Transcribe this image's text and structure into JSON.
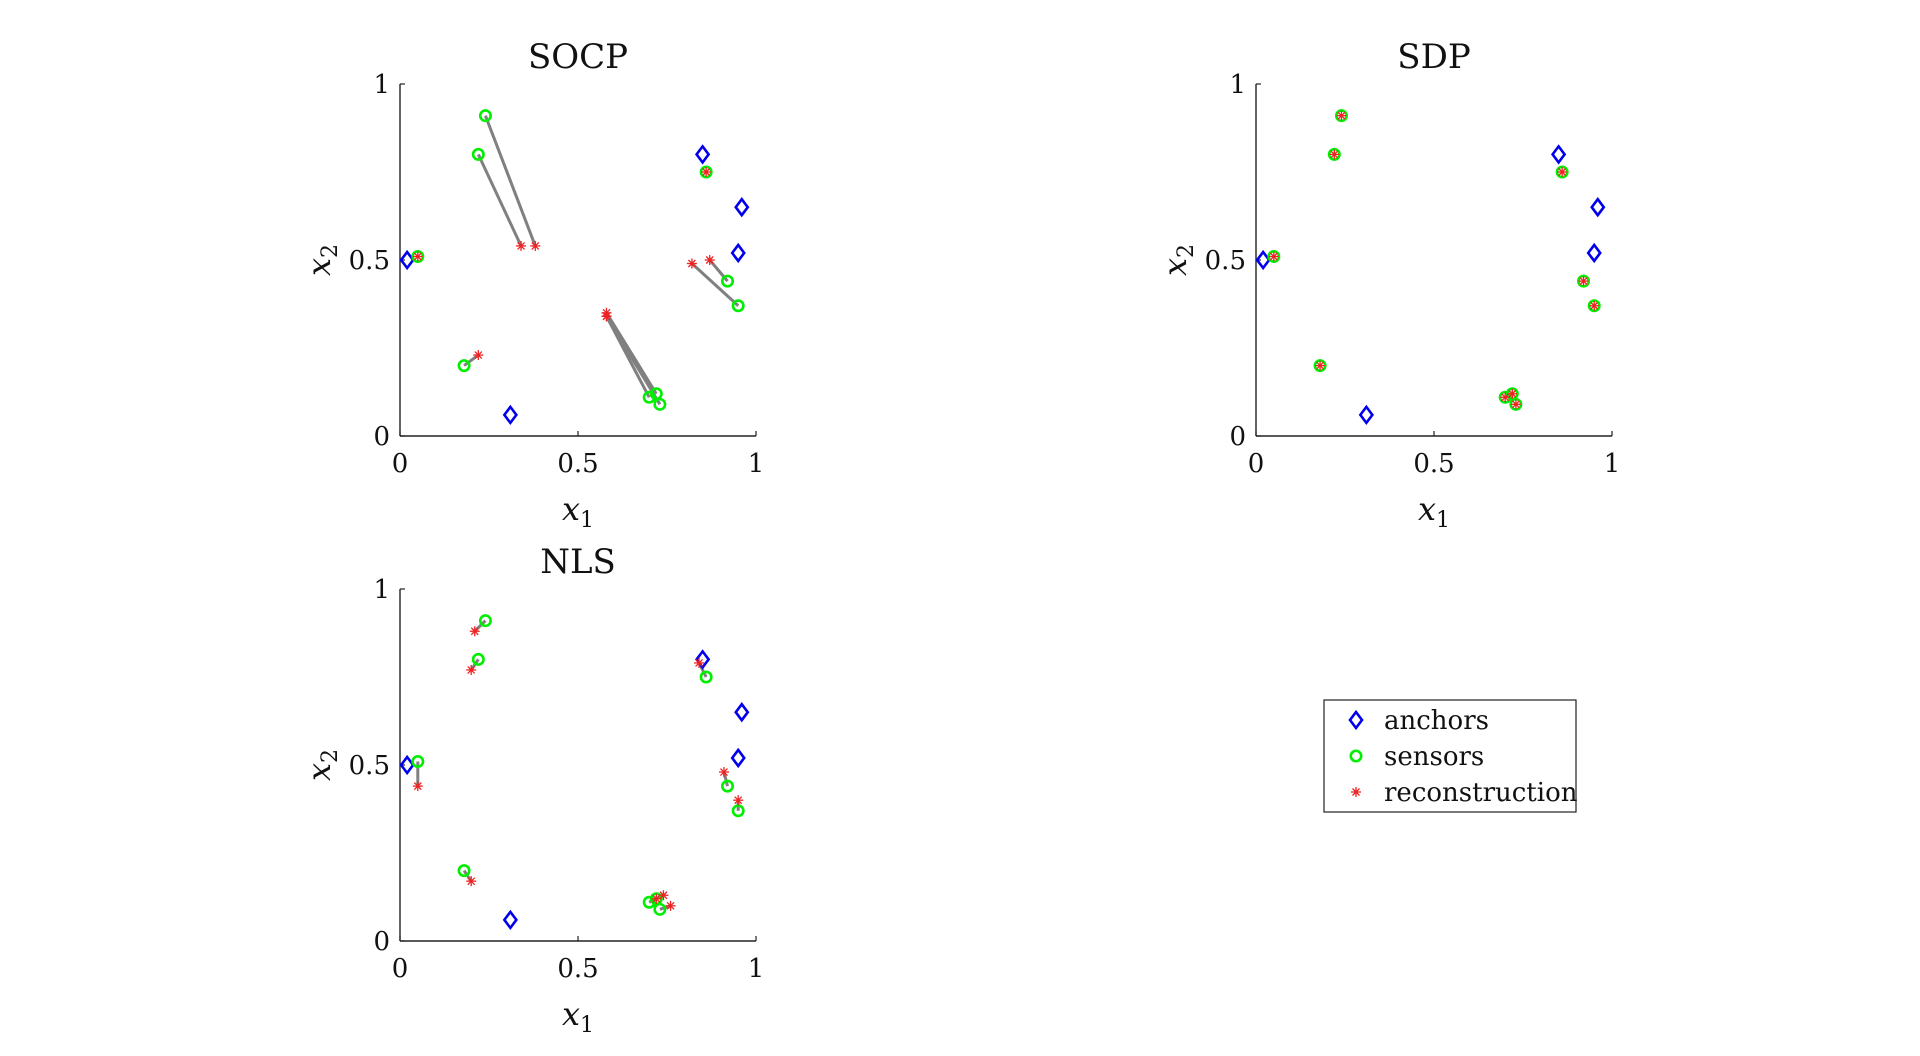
{
  "colors": {
    "anchor": "#0000ee",
    "sensor": "#00ee00",
    "reconstruction": "#ee2222",
    "error_line": "#808080"
  },
  "legend": {
    "placement": "right-middle",
    "entries": [
      {
        "label": "anchors",
        "marker": "diamond",
        "color": "#0000ee"
      },
      {
        "label": "sensors",
        "marker": "circle",
        "color": "#00ee00"
      },
      {
        "label": "reconstruction",
        "marker": "asterisk",
        "color": "#ee2222"
      }
    ]
  },
  "chart_data": [
    {
      "type": "scatter",
      "title": "SOCP",
      "xlabel": "x",
      "xlabel_sub": "1",
      "ylabel": "x",
      "ylabel_sub": "2",
      "xlim": [
        0,
        1
      ],
      "ylim": [
        0,
        1
      ],
      "xticks": [
        0,
        0.5,
        1
      ],
      "yticks": [
        0,
        0.5,
        1
      ],
      "grid": false,
      "anchors": [
        [
          0.02,
          0.5
        ],
        [
          0.31,
          0.06
        ],
        [
          0.85,
          0.8
        ],
        [
          0.96,
          0.65
        ],
        [
          0.95,
          0.52
        ]
      ],
      "sensors": [
        [
          0.05,
          0.51
        ],
        [
          0.24,
          0.91
        ],
        [
          0.22,
          0.8
        ],
        [
          0.18,
          0.2
        ],
        [
          0.7,
          0.11
        ],
        [
          0.72,
          0.12
        ],
        [
          0.73,
          0.09
        ],
        [
          0.86,
          0.75
        ],
        [
          0.92,
          0.44
        ],
        [
          0.95,
          0.37
        ]
      ],
      "reconstruction": [
        [
          0.05,
          0.51
        ],
        [
          0.38,
          0.54
        ],
        [
          0.34,
          0.54
        ],
        [
          0.22,
          0.23
        ],
        [
          0.58,
          0.34
        ],
        [
          0.58,
          0.35
        ],
        [
          0.58,
          0.34
        ],
        [
          0.86,
          0.75
        ],
        [
          0.87,
          0.5
        ],
        [
          0.82,
          0.49
        ]
      ]
    },
    {
      "type": "scatter",
      "title": "SDP",
      "xlabel": "x",
      "xlabel_sub": "1",
      "ylabel": "x",
      "ylabel_sub": "2",
      "xlim": [
        0,
        1
      ],
      "ylim": [
        0,
        1
      ],
      "xticks": [
        0,
        0.5,
        1
      ],
      "yticks": [
        0,
        0.5,
        1
      ],
      "grid": false,
      "anchors": [
        [
          0.02,
          0.5
        ],
        [
          0.31,
          0.06
        ],
        [
          0.85,
          0.8
        ],
        [
          0.96,
          0.65
        ],
        [
          0.95,
          0.52
        ]
      ],
      "sensors": [
        [
          0.05,
          0.51
        ],
        [
          0.24,
          0.91
        ],
        [
          0.22,
          0.8
        ],
        [
          0.18,
          0.2
        ],
        [
          0.7,
          0.11
        ],
        [
          0.72,
          0.12
        ],
        [
          0.73,
          0.09
        ],
        [
          0.86,
          0.75
        ],
        [
          0.92,
          0.44
        ],
        [
          0.95,
          0.37
        ]
      ],
      "reconstruction": [
        [
          0.05,
          0.51
        ],
        [
          0.24,
          0.91
        ],
        [
          0.22,
          0.8
        ],
        [
          0.18,
          0.2
        ],
        [
          0.7,
          0.11
        ],
        [
          0.72,
          0.12
        ],
        [
          0.73,
          0.09
        ],
        [
          0.86,
          0.75
        ],
        [
          0.92,
          0.44
        ],
        [
          0.95,
          0.37
        ]
      ]
    },
    {
      "type": "scatter",
      "title": "NLS",
      "xlabel": "x",
      "xlabel_sub": "1",
      "ylabel": "x",
      "ylabel_sub": "2",
      "xlim": [
        0,
        1
      ],
      "ylim": [
        0,
        1
      ],
      "xticks": [
        0,
        0.5,
        1
      ],
      "yticks": [
        0,
        0.5,
        1
      ],
      "grid": false,
      "anchors": [
        [
          0.02,
          0.5
        ],
        [
          0.31,
          0.06
        ],
        [
          0.85,
          0.8
        ],
        [
          0.96,
          0.65
        ],
        [
          0.95,
          0.52
        ]
      ],
      "sensors": [
        [
          0.05,
          0.51
        ],
        [
          0.24,
          0.91
        ],
        [
          0.22,
          0.8
        ],
        [
          0.18,
          0.2
        ],
        [
          0.7,
          0.11
        ],
        [
          0.72,
          0.12
        ],
        [
          0.73,
          0.09
        ],
        [
          0.86,
          0.75
        ],
        [
          0.92,
          0.44
        ],
        [
          0.95,
          0.37
        ]
      ],
      "reconstruction": [
        [
          0.05,
          0.44
        ],
        [
          0.21,
          0.88
        ],
        [
          0.2,
          0.77
        ],
        [
          0.2,
          0.17
        ],
        [
          0.72,
          0.12
        ],
        [
          0.74,
          0.13
        ],
        [
          0.76,
          0.1
        ],
        [
          0.84,
          0.79
        ],
        [
          0.91,
          0.48
        ],
        [
          0.95,
          0.4
        ]
      ]
    }
  ]
}
